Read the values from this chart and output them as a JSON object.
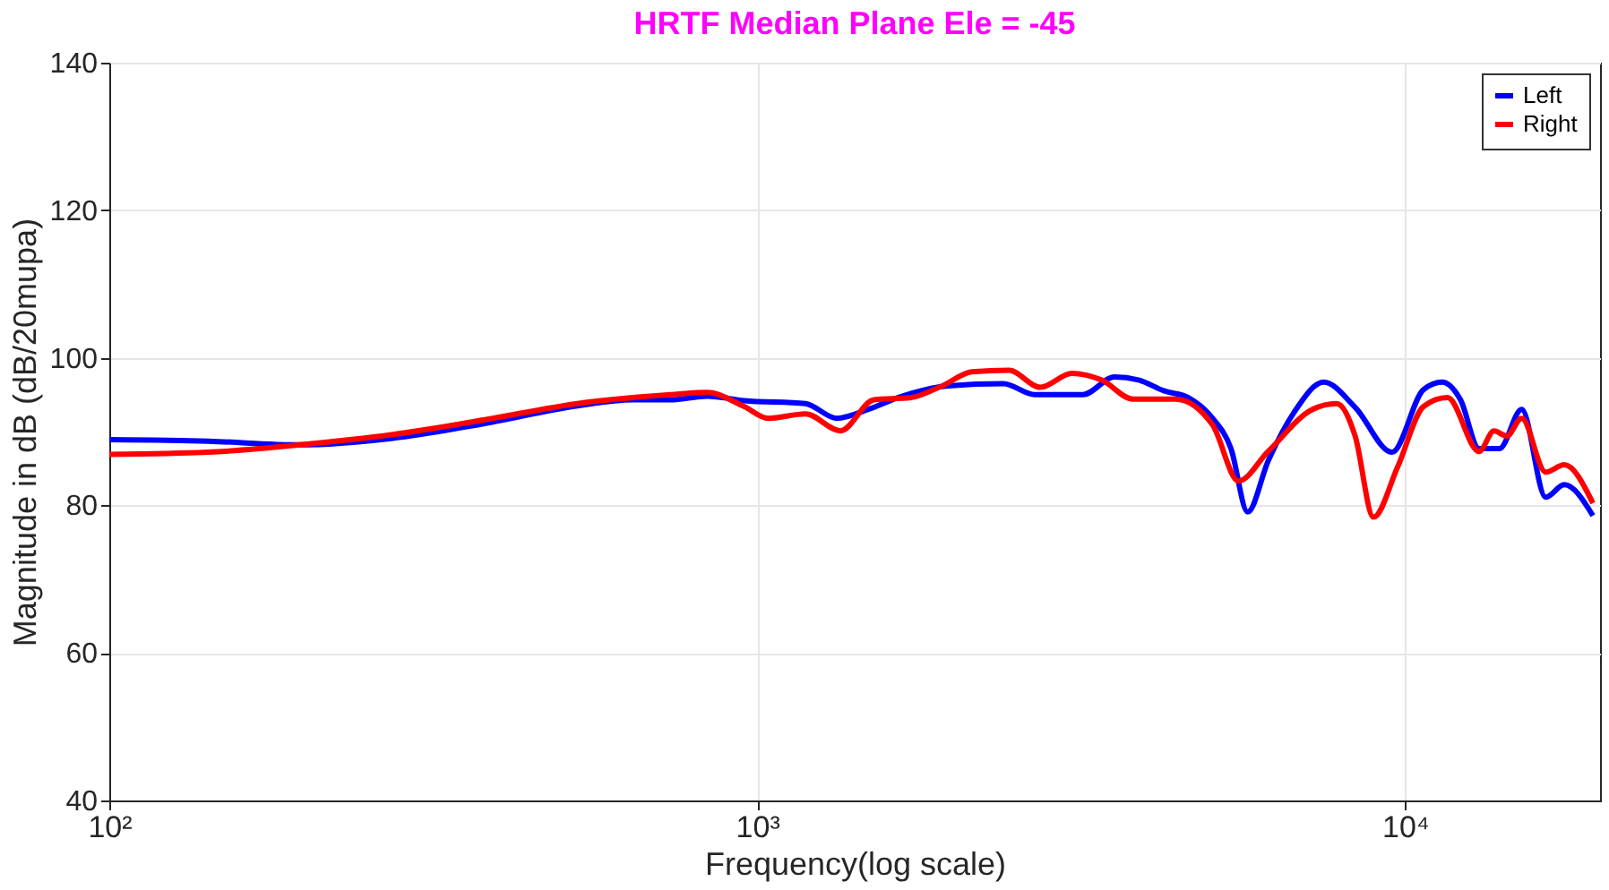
{
  "chart_data": {
    "type": "line",
    "title": "HRTF Median Plane Ele = -45",
    "xlabel": "Frequency(log scale)",
    "ylabel": "Magnitude in dB (dB/20mupa)",
    "log": "x",
    "xlim": [
      100,
      20000
    ],
    "xticks": [
      {
        "value": 100,
        "label": "10²"
      },
      {
        "value": 1000,
        "label": "10³"
      },
      {
        "value": 10000,
        "label": "10⁴"
      }
    ],
    "ylim": [
      40,
      140
    ],
    "yticks": [
      40,
      60,
      80,
      100,
      120,
      140
    ],
    "grid": true,
    "legend": "top right",
    "line_style": "solid",
    "marker": "none",
    "series": [
      {
        "name": "Left",
        "color": "#0000ff",
        "x": [
          100,
          142,
          197,
          274,
          380,
          528,
          643,
          734,
          837,
          955,
          1187,
          1327,
          1484,
          1649,
          1970,
          2399,
          2683,
          3184,
          3560,
          3878,
          4252,
          4631,
          5046,
          5387,
          5717,
          6147,
          6740,
          7488,
          8375,
          9550,
          10680,
          11410,
          12180,
          13010,
          13990,
          15140,
          16490,
          17610,
          19500
        ],
        "values": [
          88.9,
          88.7,
          88.2,
          89.1,
          91.1,
          93.5,
          94.3,
          94.3,
          94.8,
          94.2,
          93.8,
          91.8,
          93,
          94.6,
          96.2,
          96.5,
          95,
          95,
          97.4,
          97,
          95.5,
          94.6,
          91.8,
          87.7,
          79.1,
          86,
          92.6,
          96.7,
          93.3,
          87.2,
          95.7,
          96.7,
          94.3,
          87.7,
          87.7,
          93,
          81.1,
          82.8,
          78.6
        ]
      },
      {
        "name": "Right",
        "color": "#ff0000",
        "x": [
          100,
          142,
          197,
          274,
          380,
          528,
          734,
          837,
          955,
          1040,
          1187,
          1345,
          1514,
          1727,
          1931,
          2145,
          2447,
          2736,
          3060,
          3400,
          3802,
          4423,
          5046,
          5533,
          6147,
          7197,
          7842,
          8375,
          8942,
          9741,
          10680,
          11630,
          13010,
          13720,
          14360,
          15140,
          16490,
          17610,
          19500
        ],
        "values": [
          86.9,
          87.2,
          88.2,
          89.6,
          91.6,
          93.8,
          95,
          95.3,
          93.4,
          91.8,
          92.4,
          90.1,
          94.3,
          94.6,
          96.2,
          98.1,
          98.3,
          96,
          97.9,
          97,
          94.4,
          94.4,
          90.9,
          83.3,
          87.3,
          93,
          93.8,
          89.4,
          78.4,
          85.2,
          93.4,
          94.6,
          87.3,
          90.1,
          89.4,
          91.8,
          84.5,
          85.5,
          80.3
        ]
      }
    ]
  }
}
